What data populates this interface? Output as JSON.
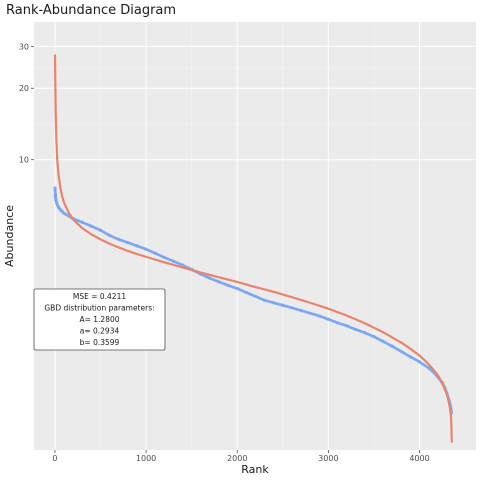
{
  "chart_data": {
    "type": "scatter",
    "title": "Rank-Abundance Diagram",
    "xlabel": "Rank",
    "ylabel": "Abundance",
    "x_ticks": [
      0,
      1000,
      2000,
      3000,
      4000
    ],
    "y_ticks": [
      10,
      20,
      30
    ],
    "y_scale": "log",
    "xlim": [
      -230,
      4620
    ],
    "ylim": [
      0.6,
      38
    ],
    "grid": true,
    "background": "#ebebeb",
    "series": [
      {
        "kind": "points",
        "color": "#7da7f2",
        "points": [
          [
            1,
            7.6
          ],
          [
            5,
            7.1
          ],
          [
            10,
            6.8
          ],
          [
            20,
            6.55
          ],
          [
            40,
            6.3
          ],
          [
            60,
            6.15
          ],
          [
            80,
            6.05
          ],
          [
            100,
            5.95
          ],
          [
            150,
            5.8
          ],
          [
            200,
            5.65
          ],
          [
            300,
            5.45
          ],
          [
            400,
            5.25
          ],
          [
            500,
            5.05
          ],
          [
            600,
            4.8
          ],
          [
            700,
            4.62
          ],
          [
            800,
            4.48
          ],
          [
            900,
            4.34
          ],
          [
            1000,
            4.2
          ],
          [
            1100,
            4.04
          ],
          [
            1200,
            3.88
          ],
          [
            1300,
            3.74
          ],
          [
            1400,
            3.6
          ],
          [
            1500,
            3.45
          ],
          [
            1600,
            3.3
          ],
          [
            1700,
            3.17
          ],
          [
            1800,
            3.06
          ],
          [
            1900,
            2.96
          ],
          [
            2000,
            2.87
          ],
          [
            2100,
            2.76
          ],
          [
            2200,
            2.66
          ],
          [
            2300,
            2.56
          ],
          [
            2400,
            2.5
          ],
          [
            2500,
            2.44
          ],
          [
            2600,
            2.38
          ],
          [
            2700,
            2.32
          ],
          [
            2800,
            2.26
          ],
          [
            2900,
            2.2
          ],
          [
            3000,
            2.13
          ],
          [
            3100,
            2.06
          ],
          [
            3200,
            2.0
          ],
          [
            3300,
            1.93
          ],
          [
            3400,
            1.87
          ],
          [
            3500,
            1.8
          ],
          [
            3600,
            1.72
          ],
          [
            3700,
            1.64
          ],
          [
            3800,
            1.56
          ],
          [
            3900,
            1.48
          ],
          [
            4000,
            1.41
          ],
          [
            4100,
            1.33
          ],
          [
            4150,
            1.28
          ],
          [
            4200,
            1.22
          ],
          [
            4250,
            1.15
          ],
          [
            4280,
            1.09
          ],
          [
            4300,
            1.04
          ],
          [
            4320,
            0.98
          ],
          [
            4330,
            0.95
          ],
          [
            4340,
            0.92
          ],
          [
            4345,
            0.89
          ],
          [
            4350,
            0.86
          ]
        ]
      },
      {
        "kind": "line",
        "color": "#e8846a",
        "points": [
          [
            1,
            27.5
          ],
          [
            3,
            22
          ],
          [
            8,
            16
          ],
          [
            15,
            12.2
          ],
          [
            25,
            10.0
          ],
          [
            40,
            8.6
          ],
          [
            60,
            7.6
          ],
          [
            80,
            7.0
          ],
          [
            100,
            6.6
          ],
          [
            150,
            6.0
          ],
          [
            200,
            5.6
          ],
          [
            300,
            5.15
          ],
          [
            400,
            4.85
          ],
          [
            500,
            4.62
          ],
          [
            600,
            4.43
          ],
          [
            700,
            4.27
          ],
          [
            800,
            4.13
          ],
          [
            900,
            4.01
          ],
          [
            1000,
            3.9
          ],
          [
            1200,
            3.7
          ],
          [
            1400,
            3.52
          ],
          [
            1600,
            3.35
          ],
          [
            1800,
            3.2
          ],
          [
            2000,
            3.06
          ],
          [
            2200,
            2.91
          ],
          [
            2400,
            2.78
          ],
          [
            2600,
            2.64
          ],
          [
            2800,
            2.5
          ],
          [
            3000,
            2.36
          ],
          [
            3200,
            2.21
          ],
          [
            3400,
            2.05
          ],
          [
            3600,
            1.88
          ],
          [
            3800,
            1.7
          ],
          [
            3900,
            1.6
          ],
          [
            4000,
            1.5
          ],
          [
            4100,
            1.38
          ],
          [
            4200,
            1.24
          ],
          [
            4250,
            1.15
          ],
          [
            4300,
            1.03
          ],
          [
            4320,
            0.96
          ],
          [
            4335,
            0.9
          ],
          [
            4345,
            0.83
          ],
          [
            4350,
            0.76
          ],
          [
            4352,
            0.7
          ],
          [
            4354,
            0.66
          ],
          [
            4355,
            0.65
          ]
        ]
      }
    ],
    "annotation": {
      "lines": [
        "MSE = 0.4211",
        "GBD distribution parameters:",
        "A= 1.2800",
        "a= 0.2934",
        "b= 0.3599"
      ]
    }
  }
}
